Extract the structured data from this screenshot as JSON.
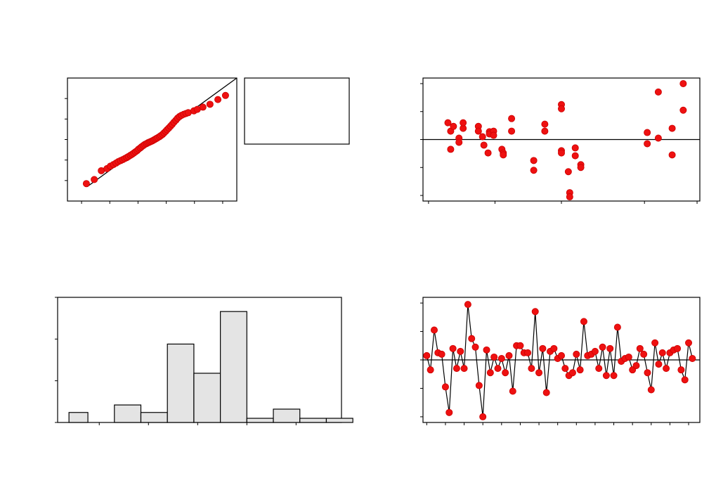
{
  "chart_data": [
    {
      "panel": "normal-probability-plot",
      "type": "scatter",
      "title": "",
      "xlabel": "",
      "ylabel": "",
      "xlim": [
        -3,
        3
      ],
      "ylim": [
        -3,
        3
      ],
      "reference_line": [
        [
          -3,
          -3
        ],
        [
          3,
          3
        ]
      ],
      "points": [
        [
          -2.33,
          -2.15
        ],
        [
          -2.05,
          -1.95
        ],
        [
          -1.8,
          -1.52
        ],
        [
          -1.6,
          -1.42
        ],
        [
          -1.48,
          -1.3
        ],
        [
          -1.37,
          -1.22
        ],
        [
          -1.28,
          -1.15
        ],
        [
          -1.2,
          -1.08
        ],
        [
          -1.12,
          -1.03
        ],
        [
          -1.04,
          -0.98
        ],
        [
          -0.97,
          -0.93
        ],
        [
          -0.9,
          -0.88
        ],
        [
          -0.84,
          -0.83
        ],
        [
          -0.77,
          -0.77
        ],
        [
          -0.71,
          -0.72
        ],
        [
          -0.65,
          -0.66
        ],
        [
          -0.59,
          -0.6
        ],
        [
          -0.53,
          -0.54
        ],
        [
          -0.48,
          -0.47
        ],
        [
          -0.42,
          -0.41
        ],
        [
          -0.37,
          -0.35
        ],
        [
          -0.31,
          -0.29
        ],
        [
          -0.26,
          -0.24
        ],
        [
          -0.2,
          -0.2
        ],
        [
          -0.15,
          -0.16
        ],
        [
          -0.1,
          -0.13
        ],
        [
          -0.05,
          -0.1
        ],
        [
          0,
          -0.07
        ],
        [
          0.05,
          -0.03
        ],
        [
          0.1,
          0.01
        ],
        [
          0.15,
          0.05
        ],
        [
          0.2,
          0.09
        ],
        [
          0.26,
          0.14
        ],
        [
          0.31,
          0.19
        ],
        [
          0.37,
          0.25
        ],
        [
          0.42,
          0.32
        ],
        [
          0.48,
          0.4
        ],
        [
          0.53,
          0.48
        ],
        [
          0.59,
          0.56
        ],
        [
          0.65,
          0.65
        ],
        [
          0.71,
          0.74
        ],
        [
          0.77,
          0.84
        ],
        [
          0.84,
          0.94
        ],
        [
          0.9,
          1.04
        ],
        [
          0.97,
          1.12
        ],
        [
          1.04,
          1.18
        ],
        [
          1.12,
          1.23
        ],
        [
          1.2,
          1.27
        ],
        [
          1.28,
          1.31
        ],
        [
          1.48,
          1.4
        ],
        [
          1.6,
          1.47
        ],
        [
          1.8,
          1.58
        ],
        [
          2.05,
          1.72
        ],
        [
          2.33,
          1.95
        ],
        [
          2.6,
          2.15
        ]
      ]
    },
    {
      "panel": "residuals-vs-fitted",
      "type": "scatter",
      "title": "",
      "xlabel": "",
      "ylabel": "",
      "xlim": [
        0,
        10
      ],
      "ylim": [
        -2.2,
        2.2
      ],
      "reference_line_y": 0,
      "points": [
        [
          0.9,
          0.6
        ],
        [
          1,
          0.3
        ],
        [
          1,
          -0.35
        ],
        [
          1.1,
          0.47
        ],
        [
          1.3,
          0.05
        ],
        [
          1.3,
          -0.1
        ],
        [
          1.45,
          0.4
        ],
        [
          1.45,
          0.6
        ],
        [
          2,
          0.47
        ],
        [
          2,
          0.3
        ],
        [
          2.15,
          0.1
        ],
        [
          2.2,
          -0.2
        ],
        [
          2.35,
          -0.48
        ],
        [
          2.4,
          0.28
        ],
        [
          2.4,
          0.2
        ],
        [
          2.55,
          0.3
        ],
        [
          2.55,
          0.15
        ],
        [
          2.85,
          -0.35
        ],
        [
          2.9,
          -0.48
        ],
        [
          2.9,
          -0.55
        ],
        [
          3.2,
          0.3
        ],
        [
          3.2,
          0.75
        ],
        [
          4,
          -0.75
        ],
        [
          4,
          -1.1
        ],
        [
          4.4,
          0.55
        ],
        [
          4.4,
          0.3
        ],
        [
          5,
          1.25
        ],
        [
          5,
          1.1
        ],
        [
          5,
          -0.4
        ],
        [
          5,
          -0.48
        ],
        [
          5.25,
          -1.15
        ],
        [
          5.3,
          -1.9
        ],
        [
          5.3,
          -2.05
        ],
        [
          5.5,
          -0.3
        ],
        [
          5.5,
          -0.58
        ],
        [
          5.7,
          -0.9
        ],
        [
          5.7,
          -1.0
        ],
        [
          8.1,
          0.25
        ],
        [
          8.1,
          -0.15
        ],
        [
          8.5,
          1.7
        ],
        [
          8.5,
          0.05
        ],
        [
          9,
          0.4
        ],
        [
          9,
          -0.55
        ],
        [
          9.4,
          1.05
        ],
        [
          9.4,
          2.0
        ]
      ]
    },
    {
      "panel": "histogram",
      "type": "bar",
      "title": "",
      "xlabel": "",
      "ylabel": "",
      "xlim": [
        -3.3,
        4.2
      ],
      "ylim": [
        0,
        15
      ],
      "bins": [
        {
          "x0": -3.0,
          "x1": -2.5,
          "value": 1.2
        },
        {
          "x0": -2.5,
          "x1": -1.8,
          "value": 0.0
        },
        {
          "x0": -1.8,
          "x1": -1.1,
          "value": 2.1
        },
        {
          "x0": -1.1,
          "x1": -0.4,
          "value": 1.2
        },
        {
          "x0": -0.4,
          "x1": 0.3,
          "value": 9.4
        },
        {
          "x0": 0.3,
          "x1": 1.0,
          "value": 5.9
        },
        {
          "x0": 1.0,
          "x1": 1.7,
          "value": 13.3
        },
        {
          "x0": 1.7,
          "x1": 2.4,
          "value": 0.5
        },
        {
          "x0": 2.4,
          "x1": 3.1,
          "value": 1.6
        },
        {
          "x0": 3.1,
          "x1": 3.8,
          "value": 0.5
        },
        {
          "x0": 3.8,
          "x1": 4.5,
          "value": 0.5
        }
      ]
    },
    {
      "panel": "residuals-vs-order",
      "type": "line",
      "title": "",
      "xlabel": "",
      "ylabel": "",
      "xlim": [
        0,
        74
      ],
      "ylim": [
        -2.2,
        2.2
      ],
      "reference_line_y": 0,
      "values": [
        0.15,
        -0.35,
        1.05,
        0.25,
        0.2,
        -0.95,
        -1.85,
        0.4,
        -0.3,
        0.3,
        -0.3,
        1.95,
        0.75,
        0.45,
        -0.9,
        -2.0,
        0.35,
        -0.45,
        0.1,
        -0.3,
        0.05,
        -0.45,
        0.15,
        -1.1,
        0.5,
        0.5,
        0.25,
        0.25,
        -0.3,
        1.7,
        -0.45,
        0.4,
        -1.15,
        0.3,
        0.4,
        0.05,
        0.15,
        -0.3,
        -0.55,
        -0.45,
        0.2,
        -0.35,
        1.35,
        0.15,
        0.2,
        0.3,
        -0.3,
        0.45,
        -0.55,
        0.4,
        -0.55,
        1.15,
        -0.05,
        0.05,
        0.1,
        -0.35,
        -0.2,
        0.4,
        0.2,
        -0.45,
        -1.05,
        0.6,
        -0.15,
        0.25,
        -0.3,
        0.25,
        0.35,
        0.4,
        -0.35,
        -0.7,
        0.6,
        0.05
      ]
    }
  ]
}
